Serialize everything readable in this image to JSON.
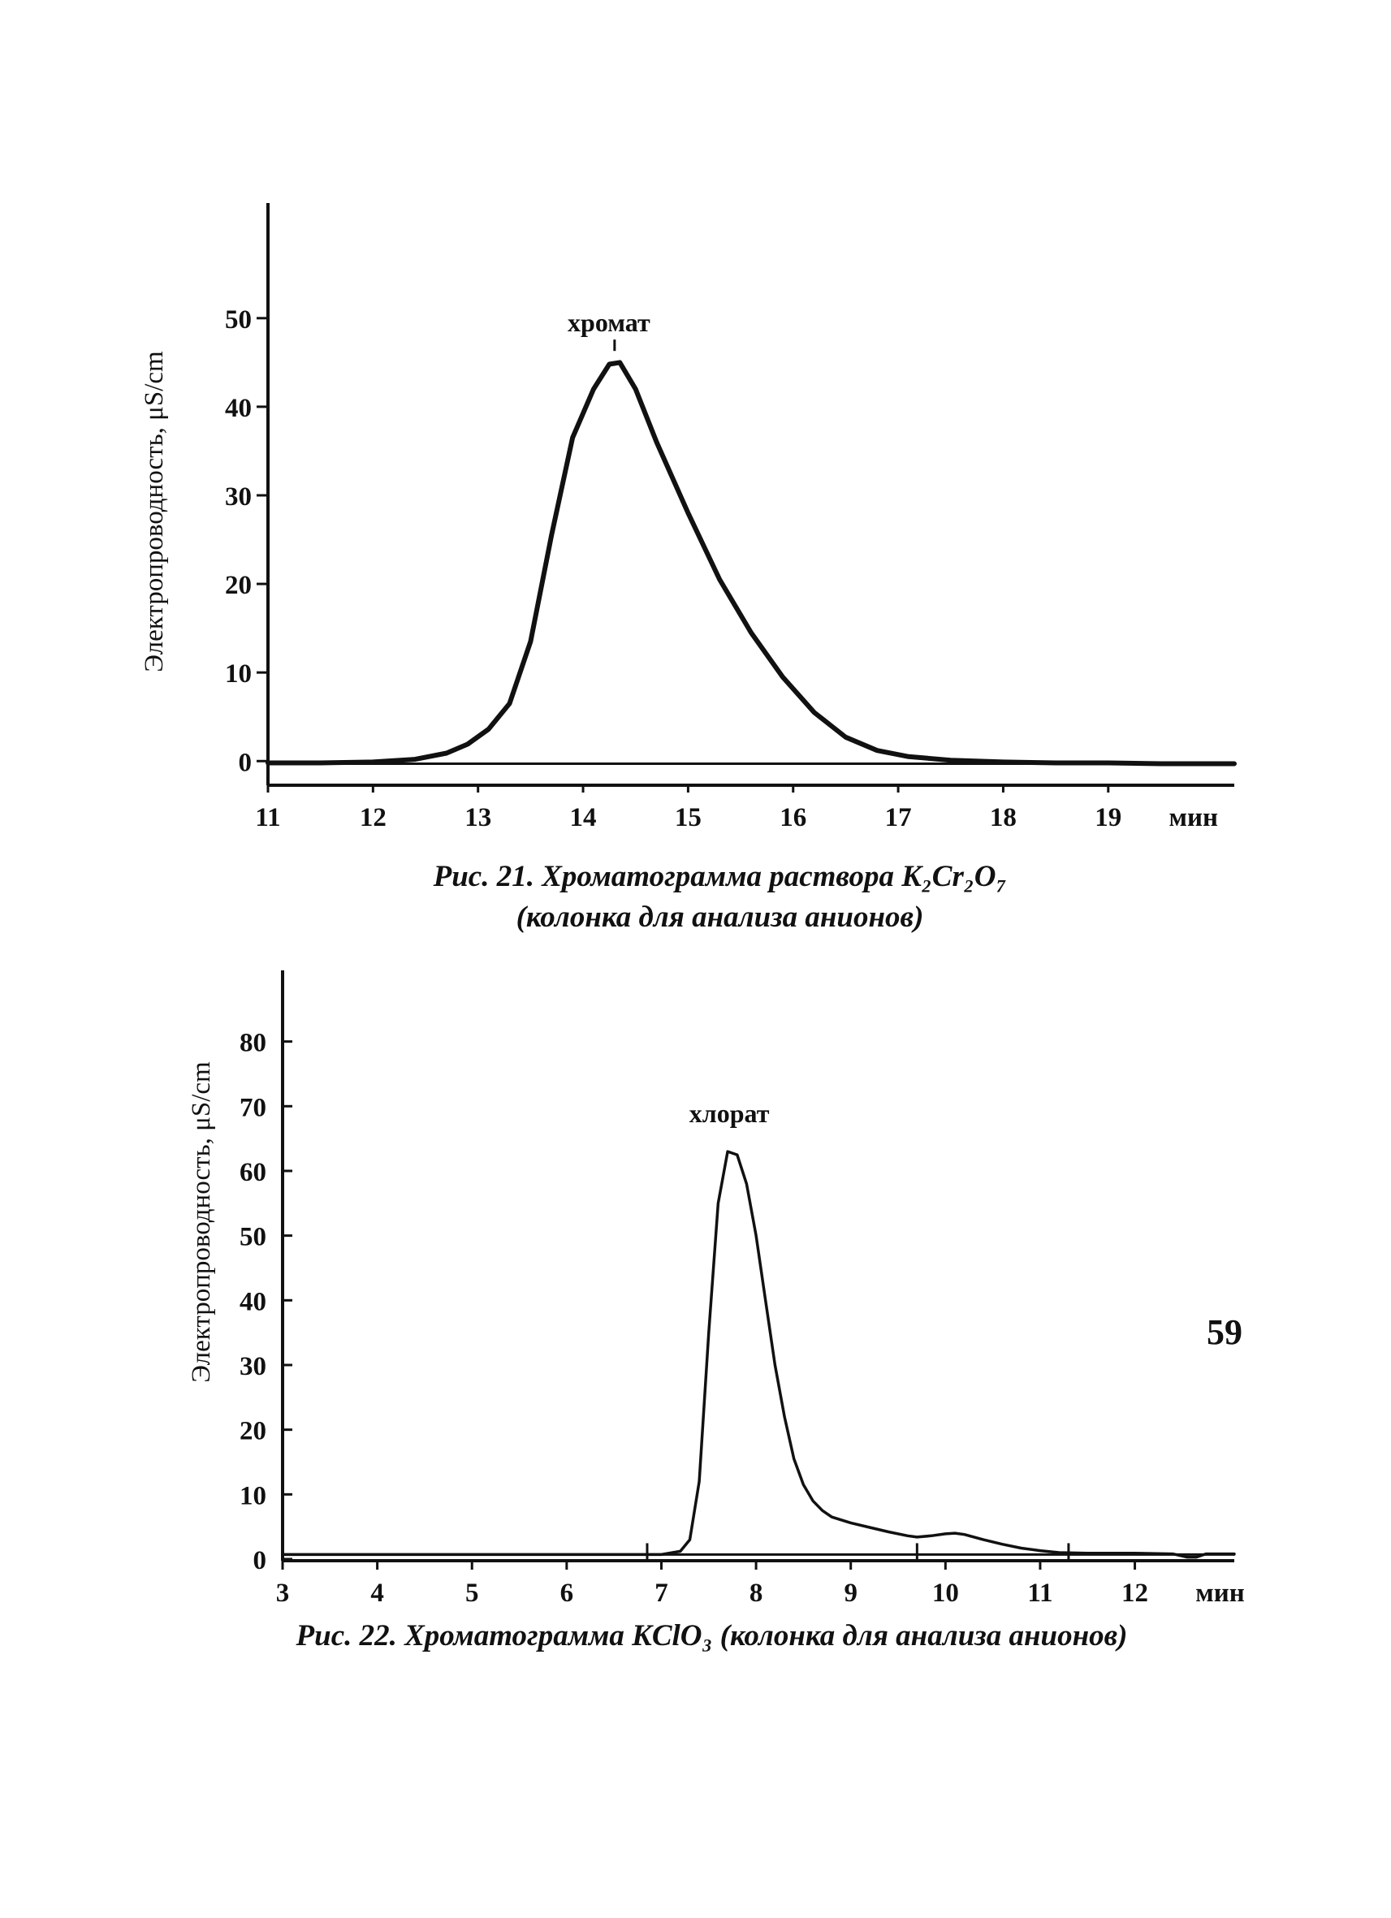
{
  "chart_data": [
    {
      "type": "line",
      "figure": "fig21",
      "caption_line1": "Рис. 21. Хроматограмма раствора K₂Cr₂O₇",
      "caption_line2": "(колонка для анализа анионов)",
      "title": "",
      "xlabel": "мин",
      "ylabel": "Электропроводность, μS/cm",
      "xlim": [
        11,
        20.2
      ],
      "ylim": [
        -3,
        63
      ],
      "xticks": [
        11,
        12,
        13,
        14,
        15,
        16,
        17,
        18,
        19
      ],
      "yticks": [
        0,
        10,
        20,
        30,
        40,
        50
      ],
      "grid": false,
      "peak_label": {
        "text": "хромат",
        "x": 14.3,
        "y": 45.2
      },
      "series": [
        {
          "style": "thick",
          "points": [
            [
              11.0,
              -0.2
            ],
            [
              11.5,
              -0.2
            ],
            [
              12.0,
              -0.1
            ],
            [
              12.4,
              0.2
            ],
            [
              12.7,
              0.9
            ],
            [
              12.9,
              1.9
            ],
            [
              13.1,
              3.6
            ],
            [
              13.3,
              6.5
            ],
            [
              13.5,
              13.5
            ],
            [
              13.7,
              25.5
            ],
            [
              13.9,
              36.5
            ],
            [
              14.1,
              42.0
            ],
            [
              14.25,
              44.8
            ],
            [
              14.35,
              45.0
            ],
            [
              14.5,
              42.0
            ],
            [
              14.7,
              36.0
            ],
            [
              15.0,
              28.0
            ],
            [
              15.3,
              20.5
            ],
            [
              15.6,
              14.5
            ],
            [
              15.9,
              9.5
            ],
            [
              16.2,
              5.5
            ],
            [
              16.5,
              2.7
            ],
            [
              16.8,
              1.2
            ],
            [
              17.1,
              0.5
            ],
            [
              17.5,
              0.1
            ],
            [
              18.0,
              -0.1
            ],
            [
              18.5,
              -0.2
            ],
            [
              19.0,
              -0.2
            ],
            [
              19.5,
              -0.3
            ],
            [
              20.2,
              -0.3
            ]
          ]
        },
        {
          "style": "baseline",
          "points": [
            [
              11.0,
              -0.3
            ],
            [
              20.2,
              -0.3
            ]
          ]
        }
      ]
    },
    {
      "type": "line",
      "figure": "fig22",
      "caption_line1": "Рис. 22. Хроматограмма KClO₃ (колонка для анализа анионов)",
      "title": "",
      "xlabel": "мин",
      "ylabel": "Электропроводность, μS/cm",
      "xlim": [
        3,
        13.05
      ],
      "ylim": [
        0,
        91
      ],
      "xticks": [
        3,
        4,
        5,
        6,
        7,
        8,
        9,
        10,
        11,
        12
      ],
      "yticks": [
        0,
        10,
        20,
        30,
        40,
        50,
        60,
        70,
        80
      ],
      "grid": false,
      "peak_label": {
        "text": "хлорат",
        "x": 7.7,
        "y": 63.5
      },
      "series": [
        {
          "style": "thin",
          "points": [
            [
              3.0,
              0.7
            ],
            [
              5.0,
              0.7
            ],
            [
              7.0,
              0.7
            ],
            [
              7.2,
              1.2
            ],
            [
              7.3,
              3.0
            ],
            [
              7.4,
              12.0
            ],
            [
              7.5,
              35.0
            ],
            [
              7.6,
              55.0
            ],
            [
              7.7,
              63.0
            ],
            [
              7.8,
              62.5
            ],
            [
              7.9,
              58.0
            ],
            [
              8.0,
              50.0
            ],
            [
              8.1,
              40.0
            ],
            [
              8.2,
              30.0
            ],
            [
              8.3,
              22.0
            ],
            [
              8.4,
              15.5
            ],
            [
              8.5,
              11.5
            ],
            [
              8.6,
              9.0
            ],
            [
              8.7,
              7.5
            ],
            [
              8.8,
              6.5
            ],
            [
              9.0,
              5.6
            ],
            [
              9.2,
              4.9
            ],
            [
              9.4,
              4.2
            ],
            [
              9.6,
              3.6
            ],
            [
              9.7,
              3.4
            ],
            [
              9.85,
              3.6
            ],
            [
              10.0,
              3.9
            ],
            [
              10.1,
              4.0
            ],
            [
              10.2,
              3.8
            ],
            [
              10.4,
              3.0
            ],
            [
              10.6,
              2.3
            ],
            [
              10.8,
              1.7
            ],
            [
              11.0,
              1.3
            ],
            [
              11.2,
              1.0
            ],
            [
              11.5,
              0.9
            ],
            [
              12.0,
              0.9
            ],
            [
              12.4,
              0.8
            ],
            [
              12.55,
              0.3
            ],
            [
              12.65,
              0.3
            ],
            [
              12.75,
              0.8
            ],
            [
              13.05,
              0.8
            ]
          ]
        },
        {
          "style": "baseline",
          "points": [
            [
              3.0,
              0.7
            ],
            [
              13.05,
              0.7
            ]
          ]
        }
      ],
      "markers": [
        6.85,
        9.7,
        11.3
      ]
    }
  ],
  "page_number": "59"
}
